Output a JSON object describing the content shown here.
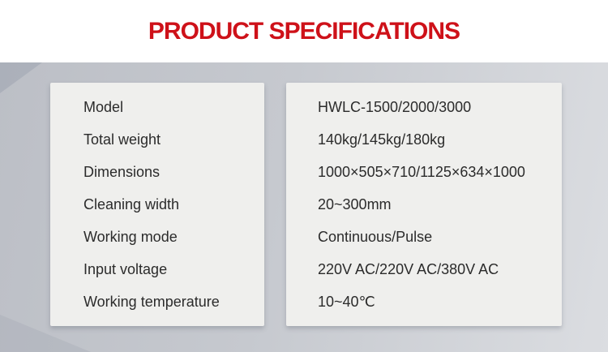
{
  "page": {
    "title": "PRODUCT SPECIFICATIONS"
  },
  "specs": {
    "rows": [
      {
        "label": "Model",
        "value": "HWLC-1500/2000/3000"
      },
      {
        "label": "Total weight",
        "value": "140kg/145kg/180kg"
      },
      {
        "label": "Dimensions",
        "value": "1000×505×710/1125×634×1000"
      },
      {
        "label": "Cleaning width",
        "value": "20~300mm"
      },
      {
        "label": "Working mode",
        "value": "Continuous/Pulse"
      },
      {
        "label": "Input voltage",
        "value": "220V AC/220V AC/380V AC"
      },
      {
        "label": "Working temperature",
        "value": "10~40℃"
      }
    ]
  },
  "colors": {
    "accent_red": "#ce1119",
    "band_gray_dark": "#bcbfc6",
    "band_gray_light": "#dbdde1",
    "card_background": "#efefed",
    "text": "#2b2b2b"
  }
}
